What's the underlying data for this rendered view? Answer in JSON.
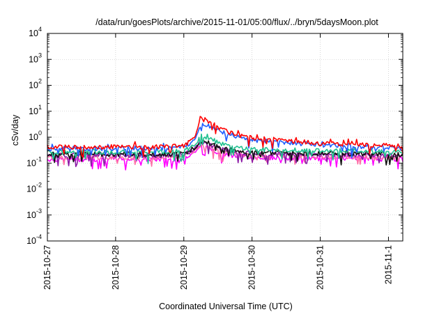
{
  "chart_data": {
    "type": "line",
    "title": "/data/run/goesPlots/archive/2015-11-01/05:00/flux/../bryn/5daysMoon.plot",
    "xlabel": "Coordinated Universal Time (UTC)",
    "ylabel": "cSv/day",
    "y_scale": "log",
    "ylim": [
      0.0001,
      10000
    ],
    "y_ticks": [
      {
        "value": 10000,
        "base": "10",
        "exp": "4"
      },
      {
        "value": 1000,
        "base": "10",
        "exp": "3"
      },
      {
        "value": 100,
        "base": "10",
        "exp": "2"
      },
      {
        "value": 10,
        "base": "10",
        "exp": "1"
      },
      {
        "value": 1,
        "base": "10",
        "exp": "0"
      },
      {
        "value": 0.1,
        "base": "10",
        "exp": "-1"
      },
      {
        "value": 0.01,
        "base": "10",
        "exp": "-2"
      },
      {
        "value": 0.001,
        "base": "10",
        "exp": "-3"
      },
      {
        "value": 0.0001,
        "base": "10",
        "exp": "-4"
      }
    ],
    "x_ticks": [
      "2015-10-27",
      "2015-10-28",
      "2015-10-29",
      "2015-10-30",
      "2015-10-31",
      "2015-11-1"
    ],
    "xlim_days": [
      0,
      5.21
    ],
    "grid": true,
    "legend": "none",
    "series": [
      {
        "color": "#ff0000",
        "values": [
          [
            0,
            0.42
          ],
          [
            1,
            0.42
          ],
          [
            1.8,
            0.43
          ],
          [
            2.0,
            0.48
          ],
          [
            2.15,
            0.9
          ],
          [
            2.25,
            5.2
          ],
          [
            2.35,
            4.3
          ],
          [
            2.5,
            2.4
          ],
          [
            2.75,
            1.3
          ],
          [
            3.0,
            0.92
          ],
          [
            3.5,
            0.75
          ],
          [
            4.0,
            0.58
          ],
          [
            4.5,
            0.52
          ],
          [
            5.21,
            0.45
          ]
        ]
      },
      {
        "color": "#1f5fff",
        "values": [
          [
            0,
            0.36
          ],
          [
            1,
            0.37
          ],
          [
            1.8,
            0.37
          ],
          [
            2.0,
            0.4
          ],
          [
            2.15,
            0.75
          ],
          [
            2.25,
            3.4
          ],
          [
            2.35,
            2.9
          ],
          [
            2.5,
            1.8
          ],
          [
            2.75,
            1.05
          ],
          [
            3.0,
            0.78
          ],
          [
            3.5,
            0.62
          ],
          [
            4.0,
            0.5
          ],
          [
            4.5,
            0.45
          ],
          [
            5.21,
            0.38
          ]
        ]
      },
      {
        "color": "#20c090",
        "values": [
          [
            0,
            0.26
          ],
          [
            1,
            0.27
          ],
          [
            1.8,
            0.27
          ],
          [
            2.0,
            0.29
          ],
          [
            2.15,
            0.48
          ],
          [
            2.25,
            1.1
          ],
          [
            2.35,
            0.95
          ],
          [
            2.5,
            0.62
          ],
          [
            2.75,
            0.42
          ],
          [
            3.0,
            0.35
          ],
          [
            3.5,
            0.32
          ],
          [
            4.0,
            0.3
          ],
          [
            4.5,
            0.29
          ],
          [
            5.21,
            0.27
          ]
        ]
      },
      {
        "color": "#111111",
        "values": [
          [
            0,
            0.22
          ],
          [
            1,
            0.22
          ],
          [
            1.8,
            0.22
          ],
          [
            2.0,
            0.24
          ],
          [
            2.15,
            0.38
          ],
          [
            2.25,
            0.72
          ],
          [
            2.35,
            0.62
          ],
          [
            2.5,
            0.42
          ],
          [
            2.75,
            0.3
          ],
          [
            3.0,
            0.26
          ],
          [
            3.5,
            0.24
          ],
          [
            4.0,
            0.23
          ],
          [
            4.5,
            0.23
          ],
          [
            5.21,
            0.22
          ]
        ]
      },
      {
        "color": "#8c1aa6",
        "values": [
          [
            0,
            0.2
          ],
          [
            1,
            0.2
          ],
          [
            1.8,
            0.2
          ],
          [
            2.0,
            0.22
          ],
          [
            2.15,
            0.34
          ],
          [
            2.25,
            0.62
          ],
          [
            2.35,
            0.55
          ],
          [
            2.5,
            0.38
          ],
          [
            2.75,
            0.27
          ],
          [
            3.0,
            0.23
          ],
          [
            3.5,
            0.22
          ],
          [
            4.0,
            0.21
          ],
          [
            4.5,
            0.21
          ],
          [
            5.21,
            0.2
          ]
        ]
      },
      {
        "color": "#ff6fa8",
        "values": [
          [
            0,
            0.17
          ],
          [
            1,
            0.17
          ],
          [
            1.8,
            0.17
          ],
          [
            2.0,
            0.19
          ],
          [
            2.15,
            0.3
          ],
          [
            2.25,
            0.52
          ],
          [
            2.35,
            0.46
          ],
          [
            2.5,
            0.32
          ],
          [
            2.75,
            0.23
          ],
          [
            3.0,
            0.2
          ],
          [
            3.5,
            0.19
          ],
          [
            4.0,
            0.18
          ],
          [
            4.5,
            0.18
          ],
          [
            5.21,
            0.17
          ]
        ]
      },
      {
        "color": "#ff00ff",
        "values": [
          [
            0,
            0.14
          ],
          [
            1,
            0.14
          ],
          [
            1.8,
            0.14
          ],
          [
            2.0,
            0.16
          ],
          [
            2.15,
            0.26
          ],
          [
            2.25,
            0.45
          ],
          [
            2.35,
            0.4
          ],
          [
            2.5,
            0.27
          ],
          [
            2.75,
            0.19
          ],
          [
            3.0,
            0.17
          ],
          [
            3.5,
            0.16
          ],
          [
            4.0,
            0.15
          ],
          [
            4.5,
            0.15
          ],
          [
            5.21,
            0.14
          ]
        ]
      }
    ]
  }
}
